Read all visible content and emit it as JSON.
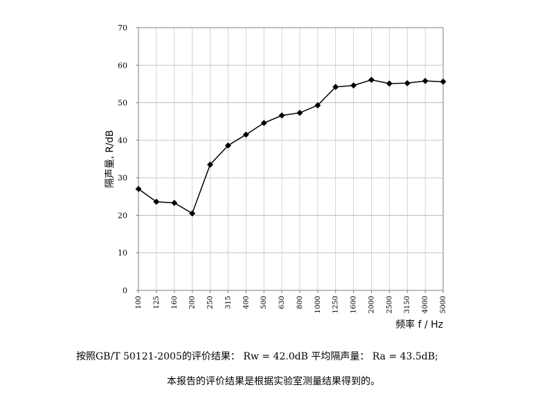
{
  "chart_data": {
    "type": "line",
    "title": "",
    "xlabel": "频率 f / Hz",
    "ylabel": "隔声量, R/dB",
    "categories": [
      "100",
      "125",
      "160",
      "200",
      "250",
      "315",
      "400",
      "500",
      "630",
      "800",
      "1000",
      "1250",
      "1600",
      "2000",
      "2500",
      "3150",
      "4000",
      "5000"
    ],
    "series": [
      {
        "values": [
          27.0,
          23.6,
          23.3,
          20.5,
          33.5,
          38.6,
          41.5,
          44.6,
          46.6,
          47.3,
          49.3,
          54.2,
          54.6,
          56.1,
          55.1,
          55.2,
          55.8,
          55.6
        ]
      }
    ],
    "yticks": [
      0,
      10,
      20,
      30,
      40,
      50,
      60,
      70
    ],
    "ylim": [
      0,
      70
    ],
    "grid": true,
    "marker": "diamond",
    "line_color": "#000000"
  },
  "summary": {
    "line1": "按照GB/T 50121-2005的评价结果：  Rw = 42.0dB  平均隔声量：  Ra = 43.5dB;",
    "line2": "本报告的评价结果是根据实验室测量结果得到的。"
  }
}
